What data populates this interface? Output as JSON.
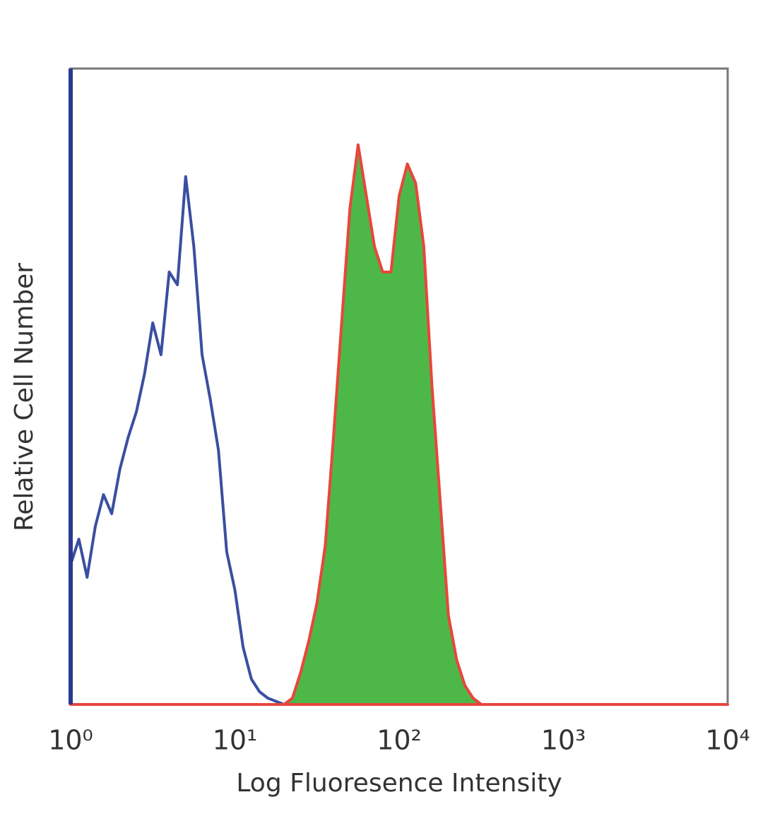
{
  "chart_data": {
    "type": "histogram-overlay",
    "x_label": "Log Fluoresence Intensity",
    "y_label": "Relative Cell Number",
    "x_scale": "log",
    "xlim": [
      1,
      10000
    ],
    "xticks": [
      {
        "value": 1,
        "label": "10⁰"
      },
      {
        "value": 10,
        "label": "10¹"
      },
      {
        "value": 100,
        "label": "10²"
      },
      {
        "value": 1000,
        "label": "10³"
      },
      {
        "value": 10000,
        "label": "10⁴"
      }
    ],
    "ylim": [
      0,
      100
    ],
    "x": [
      1,
      1.122,
      1.259,
      1.413,
      1.585,
      1.778,
      1.995,
      2.239,
      2.512,
      2.818,
      3.162,
      3.548,
      3.981,
      4.467,
      5.012,
      5.623,
      6.31,
      7.079,
      7.943,
      8.913,
      10,
      11.22,
      12.59,
      14.13,
      15.85,
      17.78,
      19.95,
      22.39,
      25.12,
      28.18,
      31.62,
      35.48,
      39.81,
      44.67,
      50.12,
      56.23,
      63.1,
      70.79,
      79.43,
      89.13,
      100,
      112.2,
      125.9,
      141.3,
      158.5,
      177.8,
      199.5,
      223.9,
      251.2,
      281.8,
      316.2,
      1000,
      10000
    ],
    "series": [
      {
        "color": "#3a4fa0",
        "values": [
          22,
          26,
          20,
          28,
          33,
          30,
          37,
          42,
          46,
          52,
          60,
          55,
          68,
          66,
          83,
          72,
          55,
          48,
          40,
          24,
          18,
          9,
          4,
          2,
          1,
          0.5,
          0,
          0,
          0,
          0,
          0,
          0,
          0,
          0,
          0,
          0,
          0,
          0,
          0,
          0,
          0,
          0,
          0,
          0,
          0,
          0,
          0,
          0,
          0,
          0,
          0,
          0,
          0
        ]
      },
      {
        "color": "#e8463c",
        "fill": "#4db848",
        "values": [
          0,
          0,
          0,
          0,
          0,
          0,
          0,
          0,
          0,
          0,
          0,
          0,
          0,
          0,
          0,
          0,
          0,
          0,
          0,
          0,
          0,
          0,
          0,
          0,
          0,
          0,
          0,
          1,
          5,
          10,
          16,
          25,
          42,
          60,
          78,
          88,
          80,
          72,
          68,
          68,
          80,
          85,
          82,
          72,
          50,
          32,
          14,
          7,
          3,
          1,
          0,
          0,
          0
        ]
      }
    ],
    "axis_color": "#2b3990"
  }
}
